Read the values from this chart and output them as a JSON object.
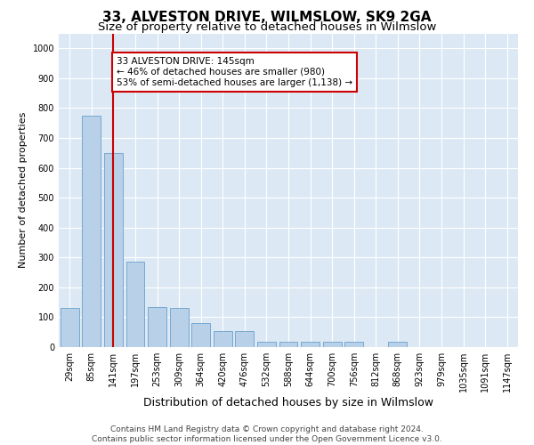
{
  "title": "33, ALVESTON DRIVE, WILMSLOW, SK9 2GA",
  "subtitle": "Size of property relative to detached houses in Wilmslow",
  "xlabel": "Distribution of detached houses by size in Wilmslow",
  "ylabel": "Number of detached properties",
  "bin_labels": [
    "29sqm",
    "85sqm",
    "141sqm",
    "197sqm",
    "253sqm",
    "309sqm",
    "364sqm",
    "420sqm",
    "476sqm",
    "532sqm",
    "588sqm",
    "644sqm",
    "700sqm",
    "756sqm",
    "812sqm",
    "868sqm",
    "923sqm",
    "979sqm",
    "1035sqm",
    "1091sqm",
    "1147sqm"
  ],
  "bar_values": [
    130,
    775,
    650,
    285,
    135,
    130,
    80,
    55,
    55,
    18,
    18,
    18,
    18,
    18,
    0,
    18,
    0,
    0,
    0,
    0,
    0
  ],
  "bar_color": "#b8d0e8",
  "bar_edgecolor": "#6aa0cc",
  "background_color": "#dce9f5",
  "grid_color": "#ffffff",
  "vline_x": 2,
  "vline_color": "#cc0000",
  "annotation_text": "33 ALVESTON DRIVE: 145sqm\n← 46% of detached houses are smaller (980)\n53% of semi-detached houses are larger (1,138) →",
  "annotation_box_color": "#ffffff",
  "annotation_box_edgecolor": "#cc0000",
  "ylim": [
    0,
    1050
  ],
  "yticks": [
    0,
    100,
    200,
    300,
    400,
    500,
    600,
    700,
    800,
    900,
    1000
  ],
  "footer_line1": "Contains HM Land Registry data © Crown copyright and database right 2024.",
  "footer_line2": "Contains public sector information licensed under the Open Government Licence v3.0.",
  "title_fontsize": 11,
  "subtitle_fontsize": 9.5,
  "xlabel_fontsize": 9,
  "ylabel_fontsize": 8,
  "tick_fontsize": 7,
  "annotation_fontsize": 7.5,
  "footer_fontsize": 6.5
}
